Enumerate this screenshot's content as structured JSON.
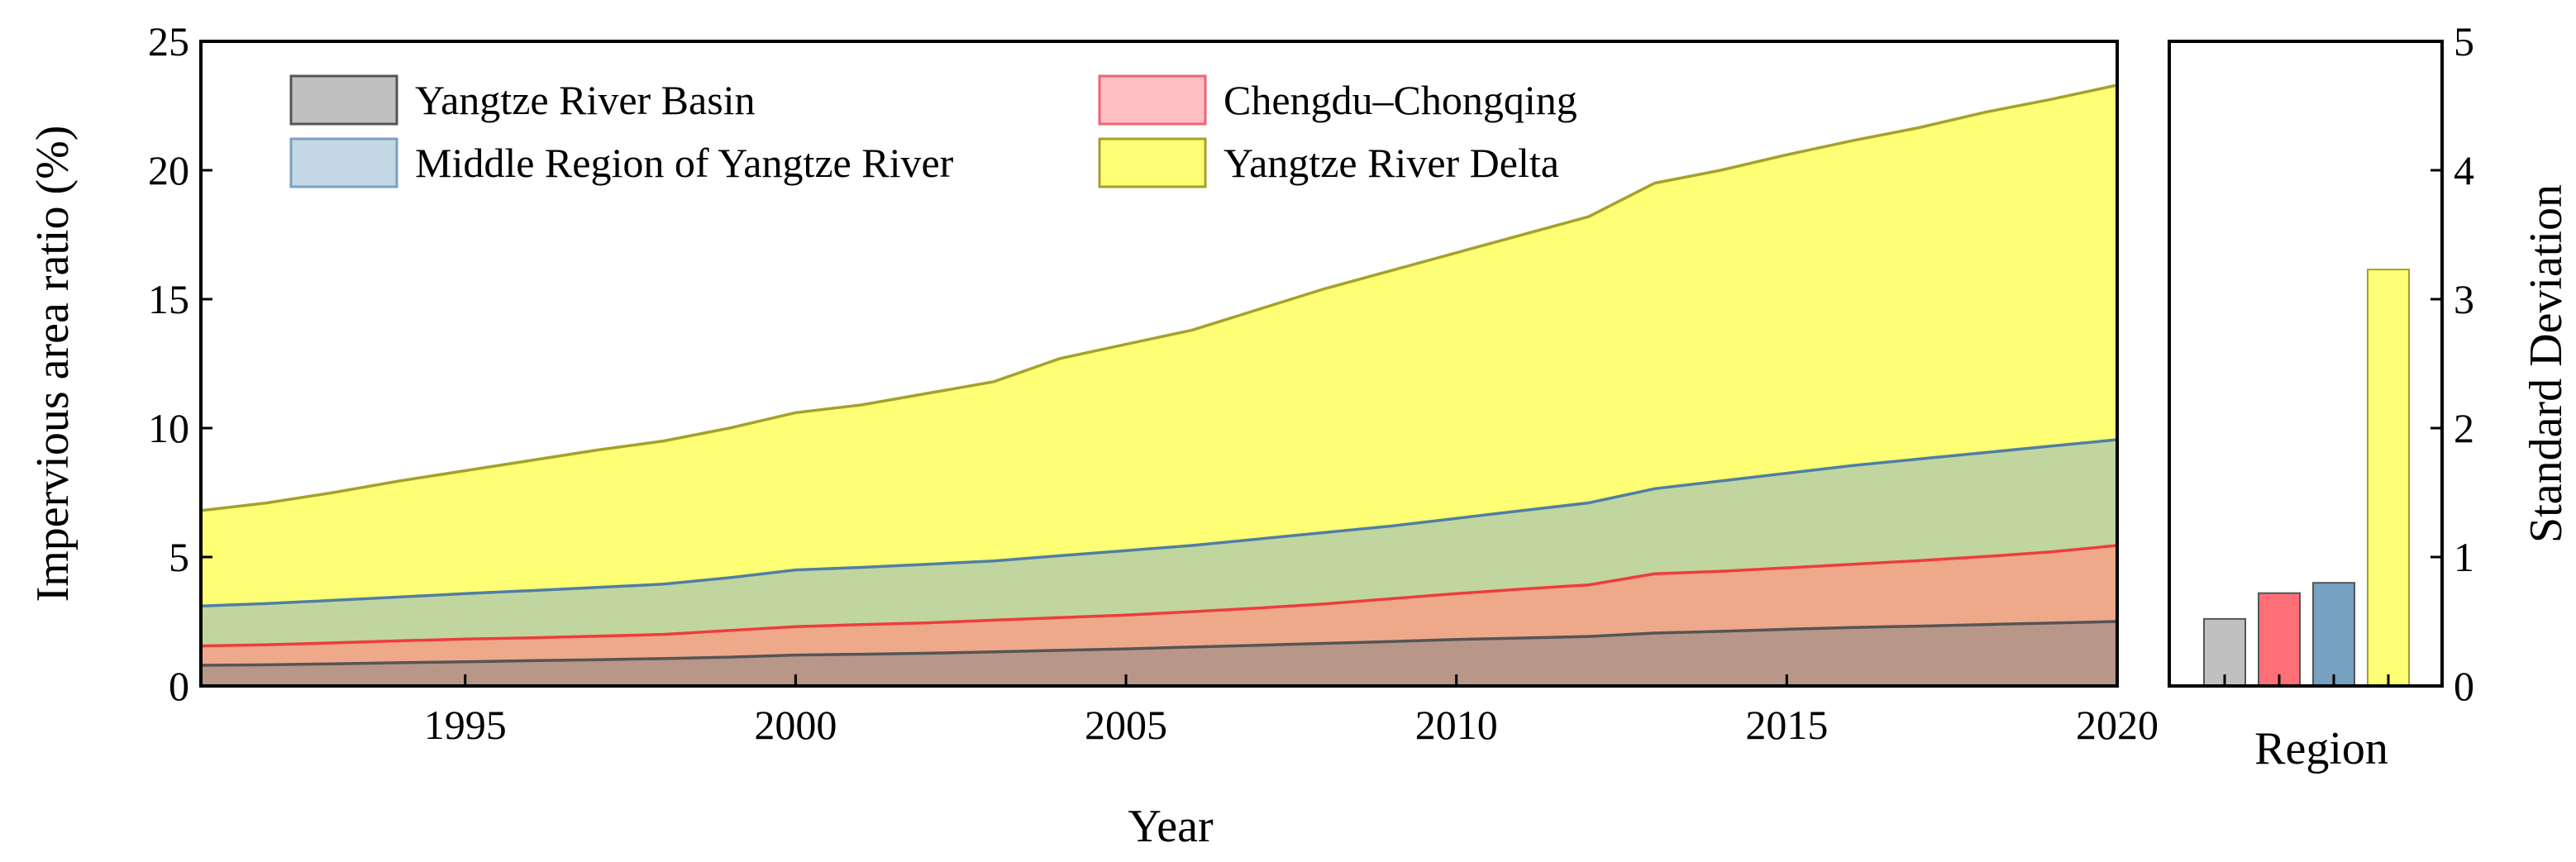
{
  "chart_data": [
    {
      "type": "area",
      "stacking": "overlay",
      "xlabel": "Year",
      "ylabel": "Impervious area ratio (%)",
      "xlim": [
        1991,
        2020
      ],
      "ylim": [
        0,
        25
      ],
      "xticks": [
        "1995",
        "2000",
        "2005",
        "2010",
        "2015",
        "2020"
      ],
      "yticks": [
        "0",
        "5",
        "10",
        "15",
        "20",
        "25"
      ],
      "legend_position": "top-left",
      "x": [
        1991,
        1992,
        1993,
        1994,
        1995,
        1996,
        1997,
        1998,
        1999,
        2000,
        2001,
        2002,
        2003,
        2004,
        2005,
        2006,
        2007,
        2008,
        2009,
        2010,
        2011,
        2012,
        2013,
        2014,
        2015,
        2016,
        2017,
        2018,
        2019,
        2020
      ],
      "series": [
        {
          "name": "Yangtze River Delta",
          "fill": "#ffff75",
          "stroke": "#a5a12a",
          "values": [
            6.8,
            7.1,
            7.5,
            7.95,
            8.35,
            8.75,
            9.15,
            9.5,
            10.0,
            10.6,
            10.9,
            11.35,
            11.8,
            12.7,
            13.25,
            13.8,
            14.6,
            15.4,
            16.1,
            16.8,
            17.5,
            18.2,
            19.5,
            20.0,
            20.6,
            21.15,
            21.65,
            22.25,
            22.75,
            23.3
          ]
        },
        {
          "name": "Middle Region of Yangtze River",
          "fill": "#c1d59f",
          "stroke": "#4f7fa6",
          "values": [
            3.1,
            3.2,
            3.32,
            3.45,
            3.58,
            3.7,
            3.82,
            3.95,
            4.2,
            4.5,
            4.6,
            4.72,
            4.85,
            5.05,
            5.25,
            5.45,
            5.7,
            5.95,
            6.2,
            6.5,
            6.8,
            7.1,
            7.65,
            7.95,
            8.25,
            8.55,
            8.8,
            9.05,
            9.3,
            9.55
          ]
        },
        {
          "name": "Chengdu–Chongqing",
          "fill": "#eda98a",
          "stroke": "#ef3c3c",
          "values": [
            1.55,
            1.6,
            1.67,
            1.75,
            1.82,
            1.87,
            1.93,
            2.0,
            2.15,
            2.3,
            2.38,
            2.45,
            2.55,
            2.65,
            2.75,
            2.88,
            3.02,
            3.18,
            3.38,
            3.58,
            3.76,
            3.92,
            4.35,
            4.45,
            4.58,
            4.72,
            4.86,
            5.02,
            5.2,
            5.45
          ]
        },
        {
          "name": "Yangtze River Basin",
          "fill": "#b89688",
          "stroke": "#555555",
          "values": [
            0.8,
            0.82,
            0.86,
            0.9,
            0.94,
            0.98,
            1.02,
            1.06,
            1.12,
            1.2,
            1.23,
            1.27,
            1.32,
            1.38,
            1.44,
            1.51,
            1.58,
            1.65,
            1.72,
            1.8,
            1.86,
            1.92,
            2.05,
            2.12,
            2.2,
            2.27,
            2.32,
            2.38,
            2.44,
            2.5
          ]
        }
      ],
      "legend": [
        {
          "name": "Yangtze River Basin",
          "fill": "#c0c0c0",
          "stroke": "#555555"
        },
        {
          "name": "Chengdu–Chongqing",
          "fill": "#ffbfc5",
          "stroke": "#ee6470"
        },
        {
          "name": "Middle Region of Yangtze River",
          "fill": "#c3d8e4",
          "stroke": "#7aa0c4"
        },
        {
          "name": "Yangtze River Delta",
          "fill": "#ffff75",
          "stroke": "#a5a12a"
        }
      ]
    },
    {
      "type": "bar",
      "xlabel": "Region",
      "ylabel": "Standard Deviation",
      "ylim": [
        0,
        5
      ],
      "yticks": [
        "0",
        "1",
        "2",
        "3",
        "4",
        "5"
      ],
      "categories": [
        "Yangtze River Basin",
        "Chengdu–Chongqing",
        "Middle Region of Yangtze River",
        "Yangtze River Delta"
      ],
      "values": [
        0.52,
        0.72,
        0.8,
        3.23
      ],
      "colors": [
        "#c0c0c0",
        "#ff6f77",
        "#76a1c0",
        "#ffff75"
      ],
      "strokes": [
        "#555555",
        "#555555",
        "#555555",
        "#a5a12a"
      ]
    }
  ]
}
